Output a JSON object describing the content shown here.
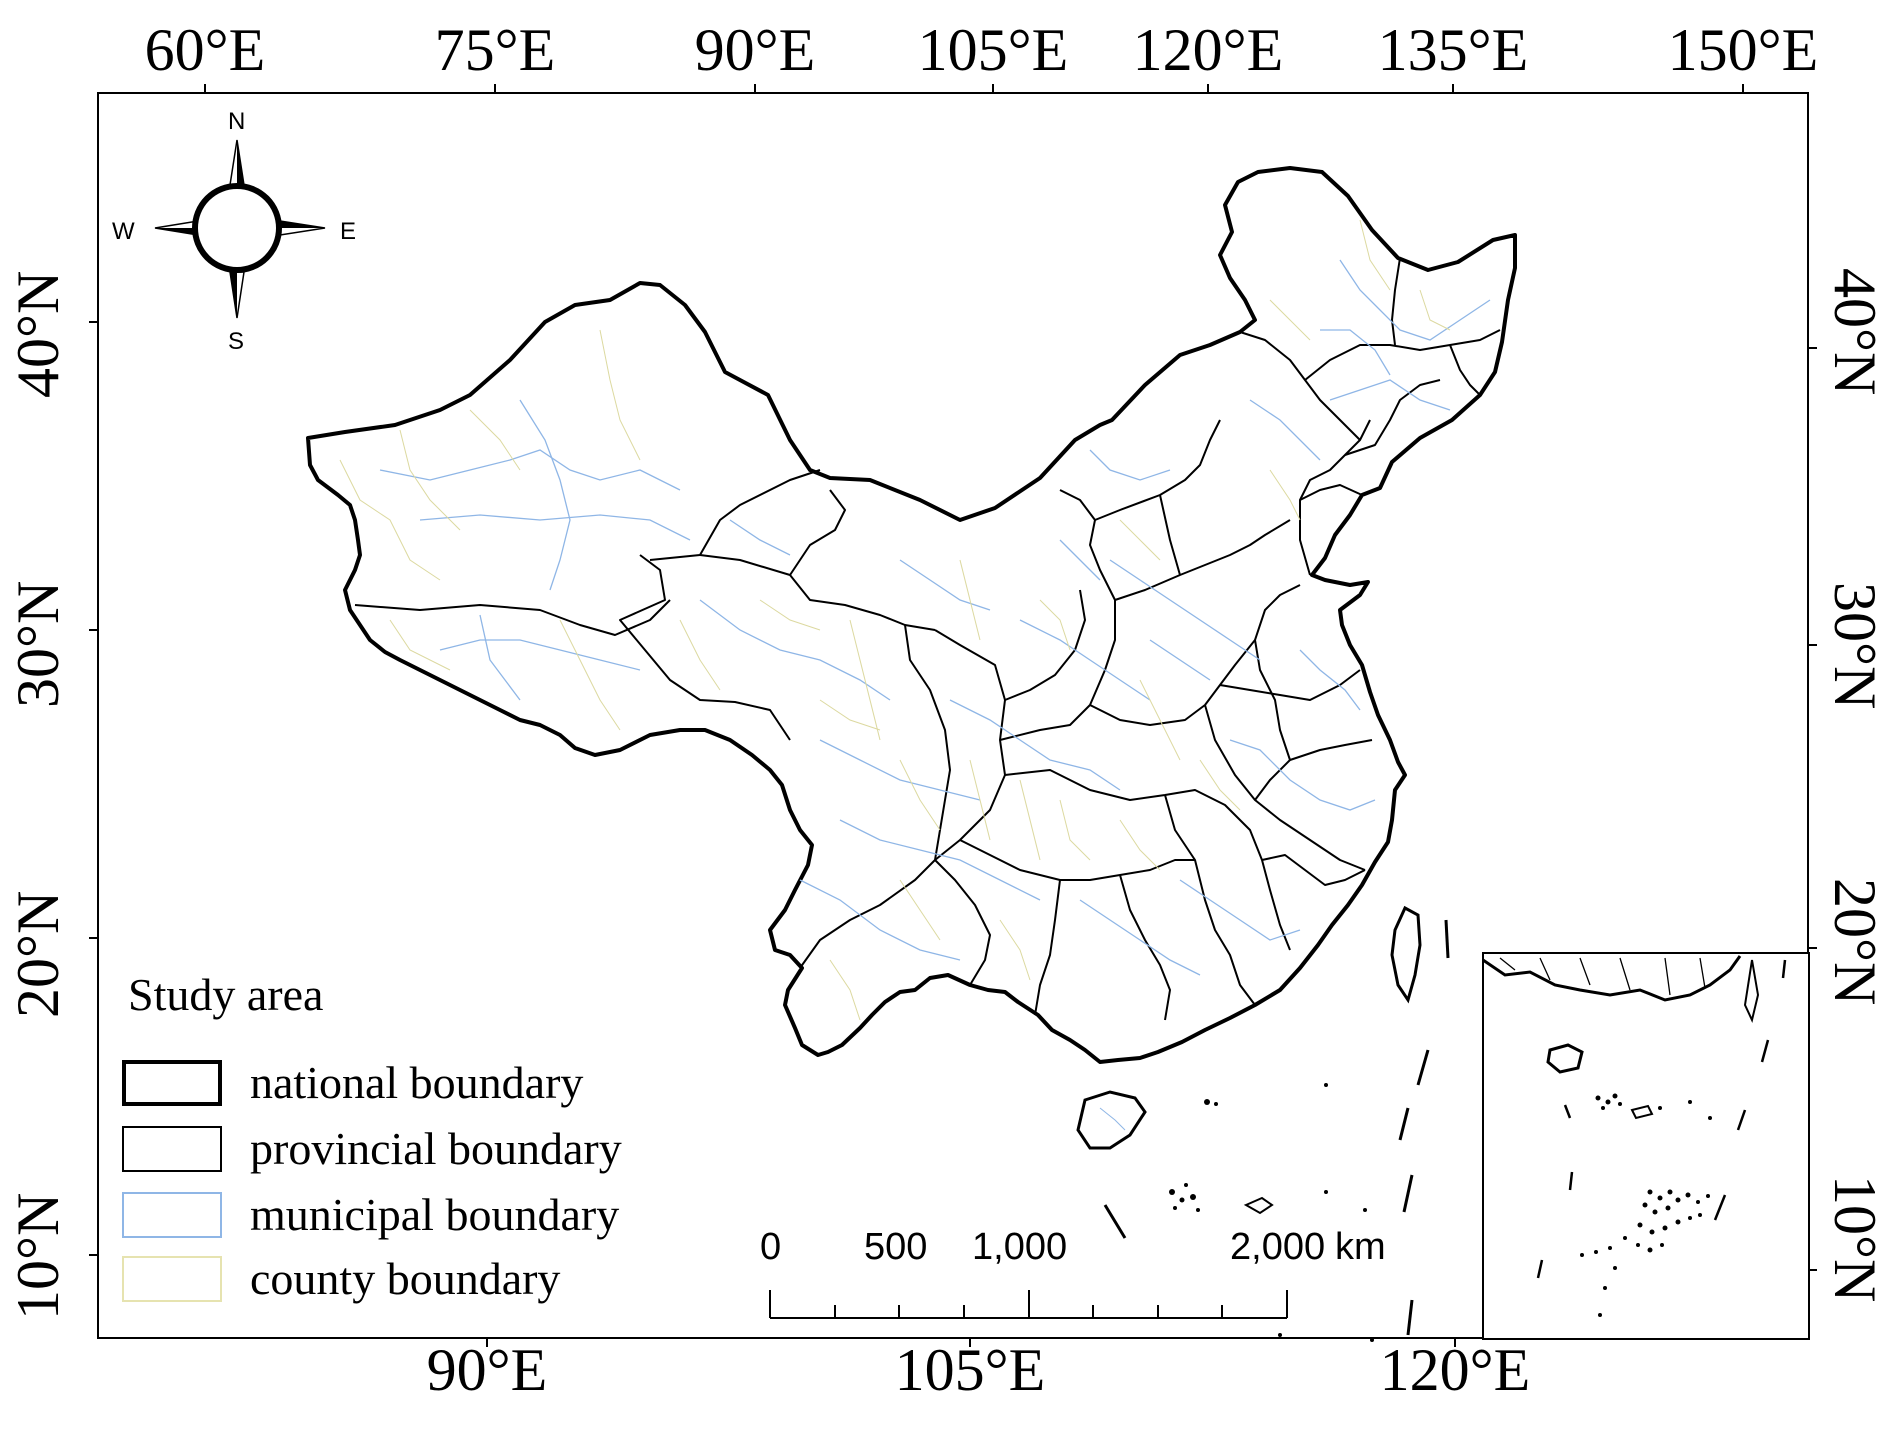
{
  "map": {
    "top_lon_labels": [
      "60°E",
      "75°E",
      "90°E",
      "105°E",
      "120°E",
      "135°E",
      "150°E"
    ],
    "bottom_lon_labels": [
      "90°E",
      "105°E",
      "120°E"
    ],
    "left_lat_labels": [
      "40°N",
      "30°N",
      "20°N",
      "10°N"
    ],
    "right_lat_labels": [
      "40°N",
      "30°N",
      "20°N",
      "10°N"
    ]
  },
  "compass": {
    "north": "N",
    "south": "S",
    "east": "E",
    "west": "W"
  },
  "legend": {
    "title": "Study area",
    "items": [
      {
        "label": "national boundary",
        "color": "#000000",
        "width": 4
      },
      {
        "label": "provincial boundary",
        "color": "#000000",
        "width": 2
      },
      {
        "label": "municipal boundary",
        "color": "#8fb6e6",
        "width": 2
      },
      {
        "label": "county boundary",
        "color": "#e6e3b0",
        "width": 2
      }
    ]
  },
  "scale_bar": {
    "labels": [
      "0",
      "500",
      "1,000",
      "2,000"
    ],
    "unit": "km"
  }
}
